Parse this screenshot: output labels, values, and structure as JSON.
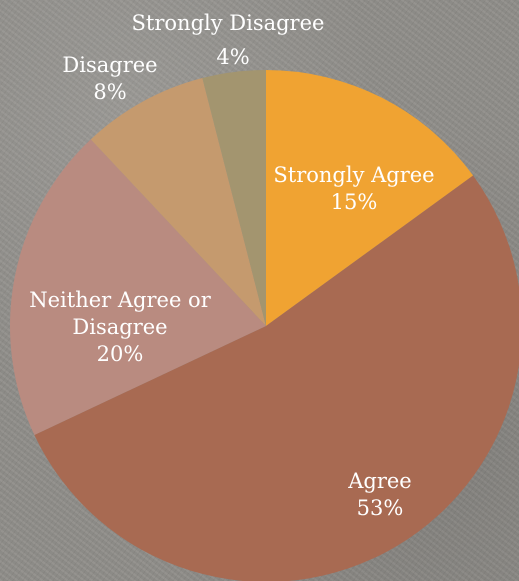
{
  "chart_data": {
    "type": "pie",
    "title": "",
    "slices": [
      {
        "label": "Strongly Agree",
        "value": 15,
        "value_label": "15%",
        "color": "#f0a332"
      },
      {
        "label": "Agree",
        "value": 53,
        "value_label": "53%",
        "color": "#a86a52"
      },
      {
        "label": "Neither Agree or Disagree",
        "value": 20,
        "value_label": "20%",
        "color": "#b98b80"
      },
      {
        "label": "Disagree",
        "value": 8,
        "value_label": "8%",
        "color": "#c59a6e"
      },
      {
        "label": "Strongly Disagree",
        "value": 4,
        "value_label": "4%",
        "color": "#a3956f"
      }
    ],
    "start": "12 o'clock",
    "direction": "clockwise",
    "legend": "none",
    "label_color": "#ffffff"
  }
}
